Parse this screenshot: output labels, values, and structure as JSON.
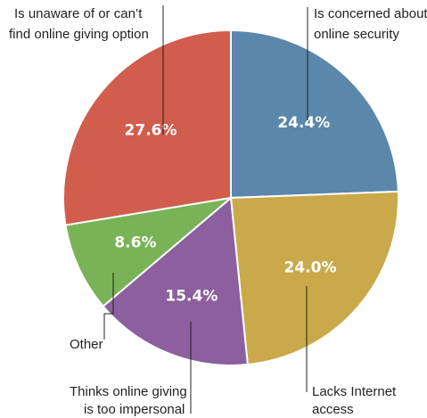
{
  "chart_data": {
    "type": "pie",
    "title": "",
    "slices": [
      {
        "label": "Is concerned about online security",
        "value": 24.4,
        "display": "24.4%",
        "color": "#5a87aa"
      },
      {
        "label": "Lacks Internet access",
        "value": 24.0,
        "display": "24.0%",
        "color": "#c9a94a"
      },
      {
        "label": "Thinks online giving is too impersonal",
        "value": 15.4,
        "display": "15.4%",
        "color": "#8c5f9f"
      },
      {
        "label": "Other",
        "value": 8.6,
        "display": "8.6%",
        "color": "#79b257"
      },
      {
        "label": "Is unaware of or can’t find online giving option",
        "value": 27.6,
        "display": "27.6%",
        "color": "#d15d4d"
      }
    ],
    "start_angle": "12 o'clock",
    "direction": "clockwise",
    "legend": "none"
  }
}
